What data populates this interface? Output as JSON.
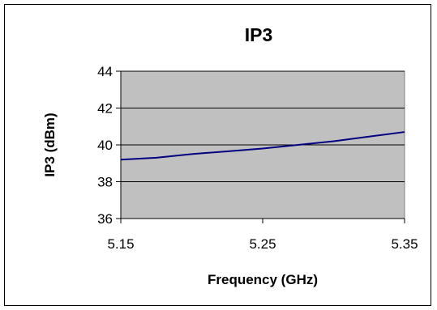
{
  "chart_data": {
    "type": "line",
    "title": "IP3",
    "xlabel": "Frequency (GHz)",
    "ylabel": "IP3 (dBm)",
    "xlim": [
      5.15,
      5.35
    ],
    "ylim": [
      36,
      44
    ],
    "x_ticks": [
      "5.15",
      "5.25",
      "5.35"
    ],
    "y_ticks": [
      "44",
      "42",
      "40",
      "38",
      "36"
    ],
    "grid": true,
    "legend": "none",
    "series": [
      {
        "x": [
          5.15,
          5.175,
          5.2,
          5.225,
          5.25,
          5.275,
          5.3,
          5.325,
          5.35
        ],
        "y": [
          39.2,
          39.3,
          39.5,
          39.65,
          39.8,
          40.0,
          40.2,
          40.45,
          40.7
        ],
        "color": "#000080"
      }
    ],
    "plot_background": "#c0c0c0"
  }
}
